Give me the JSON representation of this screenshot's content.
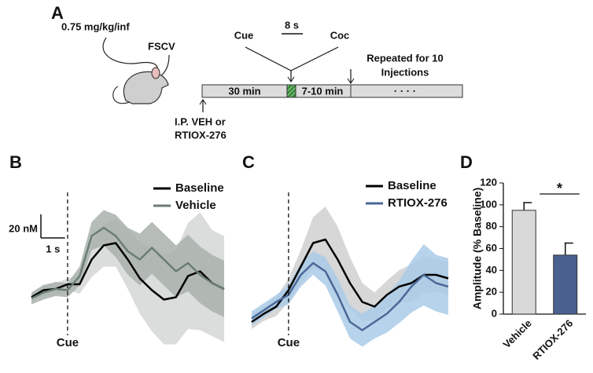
{
  "panel_a": {
    "label": "A",
    "dose": "0.75 mg/kg/inf",
    "probe": "FSCV",
    "cue": "Cue",
    "interval": "8 s",
    "coc": "Coc",
    "repeat_lines": [
      "Repeated for 10",
      "Injections"
    ],
    "segment_1": "30 min",
    "segment_2": "7-10 min",
    "dots": "· · · ·",
    "ip_lines": [
      "I.P. VEH or",
      "RTIOX-276"
    ]
  },
  "chart_data": [
    {
      "type": "line",
      "label": "B",
      "x": [
        -1.5,
        -1,
        -0.5,
        0,
        0.5,
        1,
        1.5,
        2,
        2.5,
        3,
        3.5,
        4,
        4.5,
        5,
        5.5,
        6,
        6.5
      ],
      "xlim": [
        -1.5,
        6.5
      ],
      "ylim": [
        -30,
        100
      ],
      "cue": 0,
      "cue_label": "Cue",
      "scalebar": {
        "x": 1,
        "x_label": "1 s",
        "y": 20,
        "y_label": "20 nM"
      },
      "legend": "upper right",
      "series": [
        {
          "name": "Baseline",
          "color": "#000000",
          "band_color": "#d3d7d5",
          "values": [
            1,
            7,
            8,
            12,
            12,
            33,
            45,
            47,
            33,
            17,
            7,
            -1,
            1,
            19,
            23,
            13,
            8
          ],
          "errors": [
            4,
            5,
            5,
            5,
            8,
            15,
            18,
            20,
            25,
            30,
            35,
            38,
            40,
            45,
            50,
            45,
            45
          ]
        },
        {
          "name": "Vehicle",
          "color": "#6b7d73",
          "band_color": "#a9b1ac",
          "values": [
            0,
            5,
            8,
            7,
            19,
            53,
            60,
            53,
            40,
            33,
            43,
            33,
            23,
            30,
            20,
            13,
            8
          ],
          "errors": [
            5,
            6,
            6,
            6,
            8,
            12,
            15,
            18,
            20,
            22,
            22,
            22,
            22,
            24,
            24,
            24,
            24
          ]
        }
      ]
    },
    {
      "type": "line",
      "label": "C",
      "x": [
        -1.5,
        -1,
        -0.5,
        0,
        0.5,
        1,
        1.5,
        2,
        2.5,
        3,
        3.5,
        4,
        4.5,
        5,
        5.5,
        6,
        6.5
      ],
      "xlim": [
        -1.5,
        6.5
      ],
      "ylim": [
        -30,
        100
      ],
      "cue": 0,
      "cue_label": "Cue",
      "legend": "upper right",
      "series": [
        {
          "name": "Baseline",
          "color": "#000000",
          "band_color": "#d0d0d0",
          "values": [
            -20,
            -13,
            -7,
            7,
            27,
            47,
            50,
            33,
            13,
            -3,
            -7,
            3,
            10,
            13,
            20,
            20,
            17
          ],
          "errors": [
            6,
            6,
            8,
            10,
            14,
            22,
            28,
            28,
            22,
            16,
            12,
            12,
            14,
            16,
            16,
            14,
            14
          ]
        },
        {
          "name": "RTIOX-276",
          "color": "#4a6897",
          "band_color": "#a9cbe8",
          "values": [
            -17,
            -10,
            -3,
            3,
            20,
            30,
            23,
            3,
            -20,
            -27,
            -20,
            -13,
            -3,
            10,
            20,
            13,
            10
          ],
          "errors": [
            6,
            6,
            6,
            8,
            10,
            10,
            12,
            14,
            14,
            14,
            14,
            16,
            18,
            22,
            26,
            24,
            24
          ]
        }
      ]
    },
    {
      "type": "bar",
      "label": "D",
      "categories": [
        "Vehicle",
        "RTIOX-276"
      ],
      "values": [
        95,
        54
      ],
      "errors": [
        7,
        11
      ],
      "colors": [
        "#d9d9d9",
        "#4a6190"
      ],
      "ylabel": "Amplitude (% Baseline)",
      "ylim": [
        0,
        120
      ],
      "yticks": [
        0,
        20,
        40,
        60,
        80,
        100,
        120
      ],
      "significance": "*"
    }
  ]
}
